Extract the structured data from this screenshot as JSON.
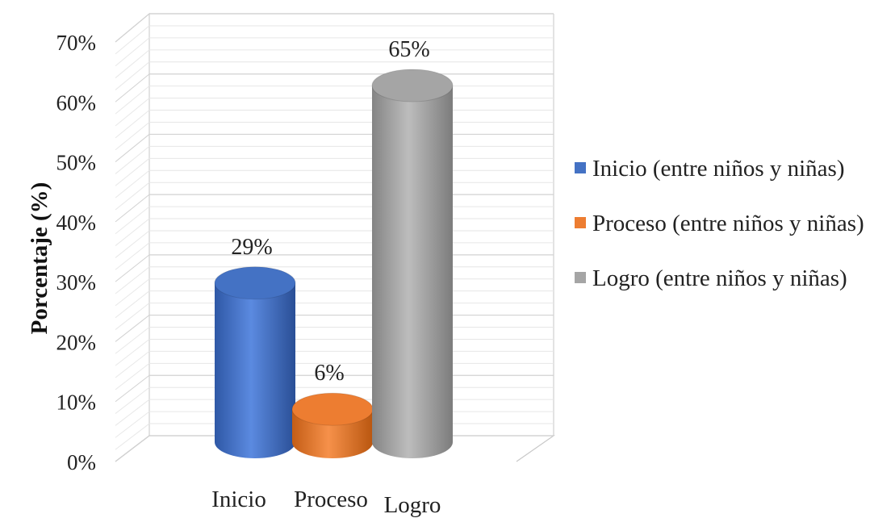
{
  "chart_data": {
    "type": "bar",
    "style": "3d-cylinder",
    "categories": [
      "Inicio",
      "Proceso",
      "Logro"
    ],
    "series": [
      {
        "name": "Inicio (entre niños y niñas)",
        "category": "Inicio",
        "value": 29,
        "label": "29%",
        "color": "#4472C4"
      },
      {
        "name": "Proceso (entre niños y niñas)",
        "category": "Proceso",
        "value": 6,
        "label": "6%",
        "color": "#ED7D31"
      },
      {
        "name": "Logro (entre niños y niñas)",
        "category": "Logro",
        "value": 65,
        "label": "65%",
        "color": "#A5A5A5"
      }
    ],
    "title": "",
    "xlabel": "",
    "ylabel": "Porcentaje (%)",
    "ylim": [
      0,
      70
    ],
    "yticks": [
      "0%",
      "10%",
      "20%",
      "30%",
      "40%",
      "50%",
      "60%",
      "70%"
    ],
    "grid": true,
    "legend": "right"
  }
}
